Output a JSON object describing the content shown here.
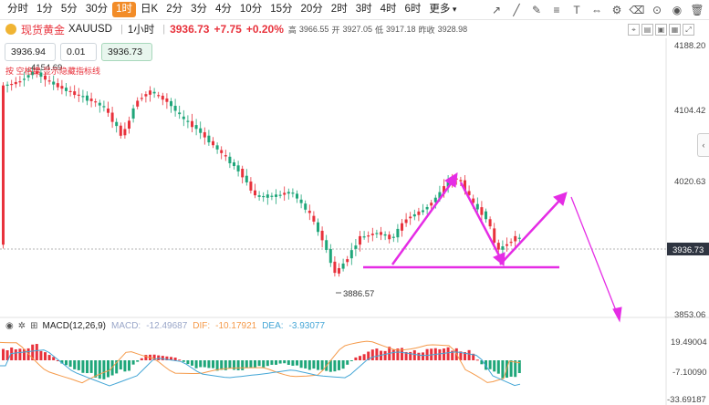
{
  "toolbar": {
    "timeframes": [
      "分时",
      "1分",
      "5分",
      "30分",
      "1时",
      "日K",
      "2分",
      "3分",
      "4分",
      "10分",
      "15分",
      "20分",
      "2时",
      "3时",
      "4时",
      "6时"
    ],
    "active_timeframe": "1时",
    "more_label": "更多",
    "tools": [
      "draw-arrow-icon",
      "draw-line-icon",
      "draw-pen-icon",
      "draw-hlines-icon",
      "draw-text-icon",
      "measure-icon",
      "settings-icon",
      "eraser-icon",
      "camera-icon",
      "eye-icon",
      "trash-icon"
    ]
  },
  "info": {
    "name": "现货黄金",
    "code": "XAUUSD",
    "interval": "1小时",
    "price": "3936.73",
    "change": "+7.75",
    "change_pct": "+0.20%",
    "high_label": "高",
    "high": "3966.55",
    "open_label": "开",
    "open": "3927.05",
    "low_label": "低",
    "low": "3917.18",
    "prev_label": "昨收",
    "prev": "3928.98"
  },
  "order": {
    "sell": "3936.94",
    "qty": "0.01",
    "buy": "3936.73"
  },
  "note": "按 空格键 显示隐藏指标线",
  "price_axis": {
    "ticks": [
      "4188.20",
      "4104.42",
      "4020.63",
      "3853.06"
    ],
    "current": "3936.73",
    "high_mark": "4154.69",
    "low_mark": "3886.57"
  },
  "macd": {
    "title": "MACD(12,26,9)",
    "macd_label": "MACD:",
    "macd_value": "-12.49687",
    "dif_label": "DIF:",
    "dif_value": "-10.17921",
    "dea_label": "DEA:",
    "dea_value": "-3.93077",
    "ticks": [
      "19.49004",
      "-7.10090",
      "-33.69187"
    ]
  },
  "colors": {
    "up": "#e8323c",
    "down": "#1fa67a",
    "annotation": "#e52ce5",
    "dif": "#f59a4a",
    "dea": "#44a6d6",
    "active": "#f28c28"
  }
}
